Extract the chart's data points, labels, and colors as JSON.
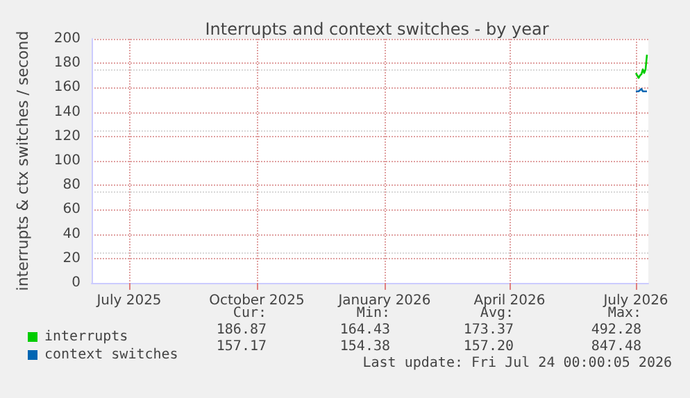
{
  "chart_data": {
    "type": "line",
    "title": "Interrupts and context switches - by year",
    "ylabel": "interrupts & ctx switches / second",
    "xlim": [
      "2025-06-18",
      "2026-07-24"
    ],
    "xticks": [
      {
        "value": "2025-07-15",
        "label": "July 2025"
      },
      {
        "value": "2025-10-15",
        "label": "October 2025"
      },
      {
        "value": "2026-01-15",
        "label": "January 2026"
      },
      {
        "value": "2026-04-15",
        "label": "April 2026"
      },
      {
        "value": "2026-07-15",
        "label": "July 2026"
      }
    ],
    "ylim": [
      0,
      200
    ],
    "yticks": [
      0,
      20,
      40,
      60,
      80,
      100,
      120,
      140,
      160,
      180,
      200
    ],
    "grid": true,
    "legend": "bottom left",
    "marker": "none",
    "line_style": "solid",
    "series": [
      {
        "name": "interrupts",
        "color": "#00cc00",
        "x": [
          "2026-07-15",
          "2026-07-16",
          "2026-07-17",
          "2026-07-18",
          "2026-07-19",
          "2026-07-20",
          "2026-07-21",
          "2026-07-22",
          "2026-07-23"
        ],
        "values": [
          172,
          170,
          168,
          170,
          171,
          175,
          172,
          175,
          187
        ]
      },
      {
        "name": "context switches",
        "color": "#0066b3",
        "x": [
          "2026-07-15",
          "2026-07-16",
          "2026-07-17",
          "2026-07-18",
          "2026-07-19",
          "2026-07-20",
          "2026-07-21",
          "2026-07-22",
          "2026-07-23"
        ],
        "values": [
          157,
          157,
          157,
          158,
          159,
          157,
          157,
          157,
          157
        ]
      }
    ],
    "annotations": [
      "Cur:",
      "Min:",
      "Avg:",
      "Max:",
      "186.87",
      "164.43",
      "173.37",
      "492.28",
      "157.17",
      "154.38",
      "157.20",
      "847.48",
      "Last update: Fri Jul 24 00:00:05 2026"
    ]
  }
}
